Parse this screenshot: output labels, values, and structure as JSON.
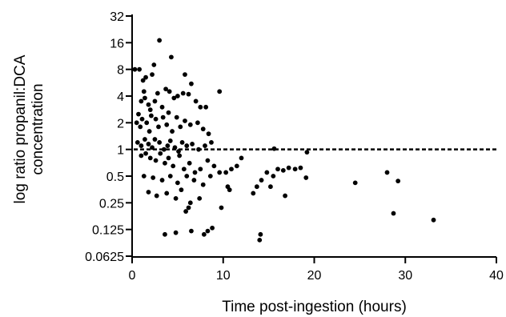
{
  "chart_data": {
    "type": "scatter",
    "title": "",
    "xlabel": "Time post-ingestion (hours)",
    "ylabel_lines": [
      "log ratio propanil:DCA",
      "concentration"
    ],
    "x_scale": "linear",
    "y_scale": "log2",
    "xlim": [
      0,
      40
    ],
    "ylim": [
      0.0625,
      32
    ],
    "x_ticks": [
      0,
      10,
      20,
      30,
      40
    ],
    "x_tick_labels": [
      "0",
      "10",
      "20",
      "30",
      "40"
    ],
    "y_ticks": [
      0.0625,
      0.125,
      0.25,
      0.5,
      1,
      2,
      4,
      8,
      16,
      32
    ],
    "y_tick_labels": [
      "0.0625",
      "0.125",
      "0.25",
      "0.5",
      "1",
      "2",
      "4",
      "8",
      "16",
      "32"
    ],
    "reference_line": {
      "y": 1,
      "style": "dashed",
      "x_range": [
        0,
        40
      ]
    },
    "grid": false,
    "marker_color": "#000000",
    "points": [
      [
        0.3,
        8
      ],
      [
        0.8,
        8
      ],
      [
        1.2,
        6
      ],
      [
        1.5,
        6.5
      ],
      [
        2.2,
        7
      ],
      [
        2.4,
        9
      ],
      [
        3.0,
        17
      ],
      [
        4.3,
        11
      ],
      [
        5.8,
        7
      ],
      [
        6.5,
        5.5
      ],
      [
        9.6,
        4.5
      ],
      [
        0.7,
        2.5
      ],
      [
        1.0,
        3.5
      ],
      [
        1.3,
        4.5
      ],
      [
        1.4,
        3.8
      ],
      [
        1.8,
        3.2
      ],
      [
        2.0,
        2.8
      ],
      [
        2.5,
        3.5
      ],
      [
        2.8,
        4.3
      ],
      [
        3.3,
        3.0
      ],
      [
        3.7,
        4.8
      ],
      [
        4.1,
        4.5
      ],
      [
        4.6,
        3.8
      ],
      [
        5.0,
        4.0
      ],
      [
        5.6,
        4.3
      ],
      [
        6.2,
        4.2
      ],
      [
        7.0,
        3.5
      ],
      [
        7.5,
        3.0
      ],
      [
        8.1,
        3.0
      ],
      [
        0.5,
        2.0
      ],
      [
        0.9,
        1.8
      ],
      [
        1.1,
        2.2
      ],
      [
        1.6,
        2.0
      ],
      [
        1.9,
        1.6
      ],
      [
        2.1,
        2.4
      ],
      [
        2.6,
        2.2
      ],
      [
        2.9,
        1.8
      ],
      [
        3.4,
        2.3
      ],
      [
        3.8,
        1.9
      ],
      [
        4.0,
        2.6
      ],
      [
        4.4,
        1.6
      ],
      [
        4.9,
        2.3
      ],
      [
        5.3,
        1.8
      ],
      [
        5.8,
        2.1
      ],
      [
        6.4,
        1.9
      ],
      [
        7.2,
        2.0
      ],
      [
        7.8,
        1.7
      ],
      [
        8.4,
        1.5
      ],
      [
        0.6,
        1.2
      ],
      [
        1.0,
        1.1
      ],
      [
        1.4,
        1.3
      ],
      [
        1.8,
        1.15
      ],
      [
        2.2,
        1.05
      ],
      [
        2.5,
        1.3
      ],
      [
        3.0,
        1.2
      ],
      [
        3.5,
        1.0
      ],
      [
        3.9,
        1.1
      ],
      [
        4.2,
        1.25
      ],
      [
        4.7,
        1.05
      ],
      [
        5.1,
        0.95
      ],
      [
        5.5,
        1.2
      ],
      [
        6.0,
        1.1
      ],
      [
        6.6,
        1.15
      ],
      [
        7.3,
        1.0
      ],
      [
        8.0,
        1.1
      ],
      [
        8.7,
        1.2
      ],
      [
        1.0,
        0.85
      ],
      [
        1.5,
        0.9
      ],
      [
        2.0,
        0.8
      ],
      [
        2.6,
        0.75
      ],
      [
        3.1,
        0.9
      ],
      [
        3.6,
        0.7
      ],
      [
        4.0,
        0.8
      ],
      [
        4.5,
        0.65
      ],
      [
        5.2,
        0.85
      ],
      [
        5.7,
        0.6
      ],
      [
        6.3,
        0.7
      ],
      [
        6.9,
        0.55
      ],
      [
        7.5,
        0.6
      ],
      [
        8.3,
        0.75
      ],
      [
        9.0,
        0.65
      ],
      [
        9.6,
        0.55
      ],
      [
        10.3,
        0.55
      ],
      [
        10.9,
        0.6
      ],
      [
        11.5,
        0.65
      ],
      [
        12.0,
        0.8
      ],
      [
        1.3,
        0.5
      ],
      [
        2.3,
        0.48
      ],
      [
        3.3,
        0.45
      ],
      [
        4.2,
        0.5
      ],
      [
        5.0,
        0.42
      ],
      [
        6.0,
        0.5
      ],
      [
        6.8,
        0.45
      ],
      [
        7.8,
        0.4
      ],
      [
        8.6,
        0.5
      ],
      [
        1.8,
        0.33
      ],
      [
        2.7,
        0.3
      ],
      [
        3.8,
        0.32
      ],
      [
        4.8,
        0.28
      ],
      [
        5.4,
        0.35
      ],
      [
        6.4,
        0.25
      ],
      [
        7.4,
        0.28
      ],
      [
        10.7,
        0.35
      ],
      [
        10.5,
        0.38
      ],
      [
        5.9,
        0.2
      ],
      [
        6.2,
        0.22
      ],
      [
        9.8,
        0.22
      ],
      [
        3.6,
        0.11
      ],
      [
        4.8,
        0.115
      ],
      [
        6.5,
        0.12
      ],
      [
        7.9,
        0.11
      ],
      [
        8.3,
        0.12
      ],
      [
        8.8,
        0.13
      ],
      [
        13.3,
        0.32
      ],
      [
        13.7,
        0.38
      ],
      [
        14.2,
        0.45
      ],
      [
        14.8,
        0.55
      ],
      [
        15.2,
        0.38
      ],
      [
        15.5,
        0.5
      ],
      [
        16.0,
        0.6
      ],
      [
        16.6,
        0.58
      ],
      [
        17.2,
        0.62
      ],
      [
        17.9,
        0.6
      ],
      [
        18.5,
        0.62
      ],
      [
        19.1,
        0.48
      ],
      [
        15.6,
        1.02
      ],
      [
        19.2,
        0.93
      ],
      [
        14.1,
        0.11
      ],
      [
        14.0,
        0.095
      ],
      [
        16.8,
        0.3
      ],
      [
        24.5,
        0.42
      ],
      [
        28.0,
        0.55
      ],
      [
        29.2,
        0.44
      ],
      [
        28.7,
        0.19
      ],
      [
        33.1,
        0.16
      ]
    ]
  }
}
